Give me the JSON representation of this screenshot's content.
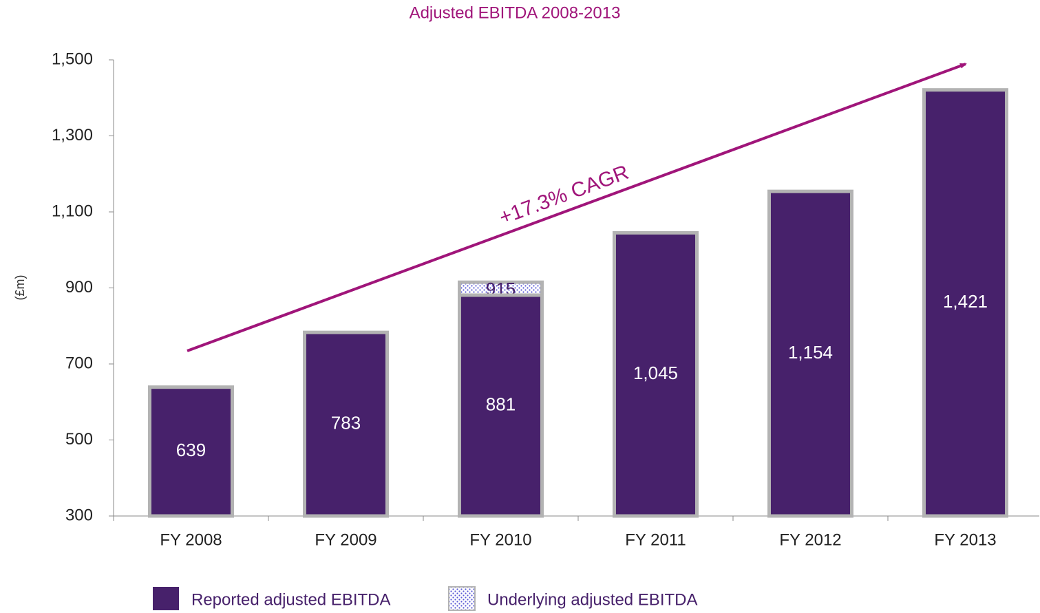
{
  "chart_data": {
    "type": "bar",
    "title": "Adjusted EBITDA  2008-2013",
    "y_label": "(£m)",
    "annotation": "+17.3% CAGR",
    "categories": [
      "FY 2008",
      "FY 2009",
      "FY 2010",
      "FY 2011",
      "FY 2012",
      "FY 2013"
    ],
    "series": [
      {
        "name": "Reported adjusted EBITDA",
        "color": "#47216b",
        "fill_style": "solid",
        "values": [
          639,
          783,
          881,
          1045,
          1154,
          1421
        ],
        "value_labels": [
          "639",
          "783",
          "881",
          "1,045",
          "1,154",
          "1,421"
        ]
      },
      {
        "name": "Underlying adjusted EBITDA",
        "color": "#5a5ad6",
        "fill_style": "dotted",
        "values": [
          null,
          null,
          915,
          null,
          null,
          null
        ]
      }
    ],
    "ylim": [
      300,
      1500
    ],
    "yticks": [
      300,
      500,
      700,
      900,
      {
        "value": 1100,
        "label": "1,100"
      },
      {
        "value": 1300,
        "label": "1,300"
      },
      {
        "value": 1500,
        "label": "1,500"
      }
    ],
    "grid": false,
    "legend": "bottom"
  }
}
